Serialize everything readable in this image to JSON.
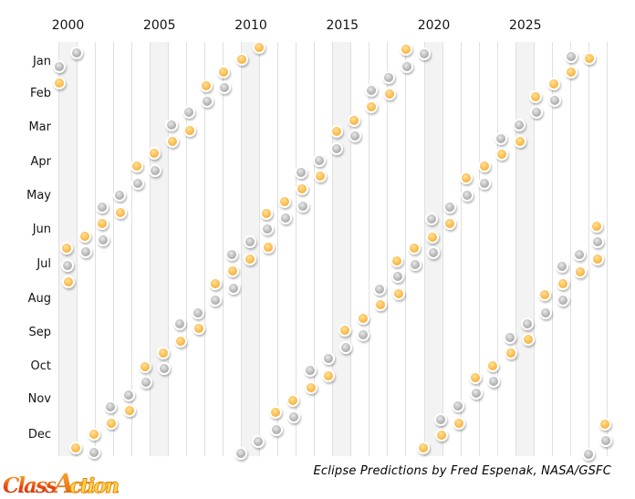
{
  "credit": "Eclipse Predictions by Fred Espenak, NASA/GSFC",
  "logo": {
    "class_text": "Class",
    "a_text": "A",
    "ction_text": "ction"
  },
  "chart_data": {
    "type": "scatter",
    "x_encoding": "calendar year, 2000 to 2030, yearly vertical gridlines",
    "y_encoding": "date within year, Jan 1 at top to Dec 31 at bottom",
    "x_ticks": [
      "2000",
      "2005",
      "2010",
      "2015",
      "2020",
      "2025"
    ],
    "x_range": [
      2000,
      2030
    ],
    "y_tick_labels": [
      "Jan",
      "Feb",
      "Mar",
      "Apr",
      "May",
      "Jun",
      "Jul",
      "Aug",
      "Sep",
      "Oct",
      "Nov",
      "Dec"
    ],
    "highlight_band_years": [
      2000,
      2005,
      2010,
      2015,
      2020,
      2025
    ],
    "grid": "vertical yearly gridlines on, highlighted band every 5 years",
    "legend_position": "none",
    "series": [
      {
        "name": "solar_eclipses",
        "color": "#F9B13C",
        "dates": [
          "2000-02-05",
          "2000-07-01",
          "2000-07-31",
          "2000-12-25",
          "2001-06-21",
          "2001-12-14",
          "2002-06-10",
          "2002-12-04",
          "2003-05-31",
          "2003-11-23",
          "2004-04-19",
          "2004-10-14",
          "2005-04-08",
          "2005-10-03",
          "2006-03-29",
          "2006-09-22",
          "2007-03-19",
          "2007-09-11",
          "2008-02-07",
          "2008-08-01",
          "2009-01-26",
          "2009-07-22",
          "2010-01-15",
          "2010-07-11",
          "2011-01-04",
          "2011-06-01",
          "2011-07-01",
          "2011-11-25",
          "2012-05-20",
          "2012-11-13",
          "2013-05-10",
          "2013-11-03",
          "2014-04-29",
          "2014-10-23",
          "2015-03-20",
          "2015-09-13",
          "2016-03-09",
          "2016-09-01",
          "2017-02-26",
          "2017-08-21",
          "2018-02-15",
          "2018-07-13",
          "2018-08-11",
          "2019-01-06",
          "2019-07-02",
          "2019-12-26",
          "2020-06-21",
          "2020-12-14",
          "2021-06-10",
          "2021-12-04",
          "2022-04-30",
          "2022-10-25",
          "2023-04-20",
          "2023-10-14",
          "2024-04-08",
          "2024-10-02",
          "2025-03-29",
          "2025-09-21",
          "2026-02-17",
          "2026-08-12",
          "2027-02-06",
          "2027-08-02",
          "2028-01-26",
          "2028-07-22",
          "2029-01-14",
          "2029-06-12",
          "2029-07-11",
          "2029-12-05"
        ]
      },
      {
        "name": "lunar_eclipses",
        "color": "#ABABAB",
        "dates": [
          "2000-01-21",
          "2000-07-16",
          "2001-01-09",
          "2001-07-05",
          "2001-12-30",
          "2002-05-26",
          "2002-06-24",
          "2002-11-20",
          "2003-05-16",
          "2003-11-09",
          "2004-05-04",
          "2004-10-28",
          "2005-04-24",
          "2005-10-17",
          "2006-03-14",
          "2006-09-07",
          "2007-03-03",
          "2007-08-28",
          "2008-02-21",
          "2008-08-16",
          "2009-02-09",
          "2009-07-07",
          "2009-08-06",
          "2009-12-31",
          "2010-06-26",
          "2010-12-21",
          "2011-06-15",
          "2011-12-10",
          "2012-06-04",
          "2012-11-28",
          "2013-04-25",
          "2013-05-25",
          "2013-10-18",
          "2014-04-15",
          "2014-10-08",
          "2015-04-04",
          "2015-09-28",
          "2016-03-23",
          "2016-09-16",
          "2017-02-11",
          "2017-08-07",
          "2018-01-31",
          "2018-07-27",
          "2019-01-21",
          "2019-07-16",
          "2020-01-10",
          "2020-06-05",
          "2020-07-05",
          "2020-11-30",
          "2021-05-26",
          "2021-11-19",
          "2022-05-16",
          "2022-11-08",
          "2023-05-05",
          "2023-10-28",
          "2024-03-25",
          "2024-09-18",
          "2025-03-14",
          "2025-09-07",
          "2026-03-03",
          "2026-08-28",
          "2027-02-20",
          "2027-07-18",
          "2027-08-17",
          "2028-01-12",
          "2028-07-06",
          "2028-12-31",
          "2029-06-26",
          "2029-12-20"
        ]
      }
    ]
  }
}
